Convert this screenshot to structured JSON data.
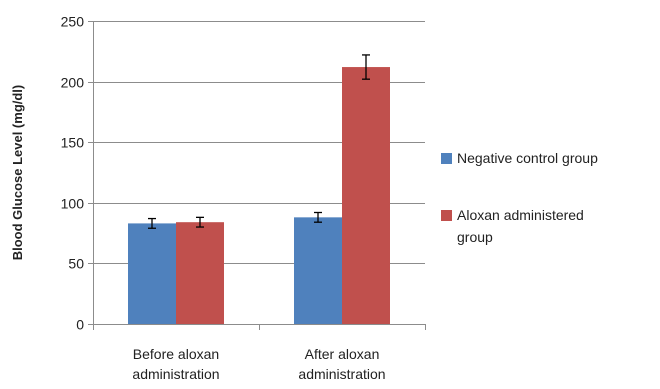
{
  "chart_data": {
    "type": "bar",
    "title": "",
    "xlabel": "",
    "ylabel": "Blood Glucose Level (mg/dl)",
    "ylim": [
      0,
      250
    ],
    "yticks": [
      0,
      50,
      100,
      150,
      200,
      250
    ],
    "categories": [
      [
        "Before aloxan",
        "administration"
      ],
      [
        "After aloxan",
        "administration"
      ]
    ],
    "series": [
      {
        "name": "Negative control group",
        "name_lines": [
          "Negative control group"
        ],
        "color": "#4f81bd",
        "values": [
          83,
          88
        ],
        "errors": [
          4,
          4
        ]
      },
      {
        "name": "Aloxan administered group",
        "name_lines": [
          "Aloxan administered",
          "group"
        ],
        "color": "#c0504d",
        "values": [
          84,
          212
        ],
        "errors": [
          4,
          10
        ]
      }
    ],
    "grid": true,
    "legend": "right"
  }
}
